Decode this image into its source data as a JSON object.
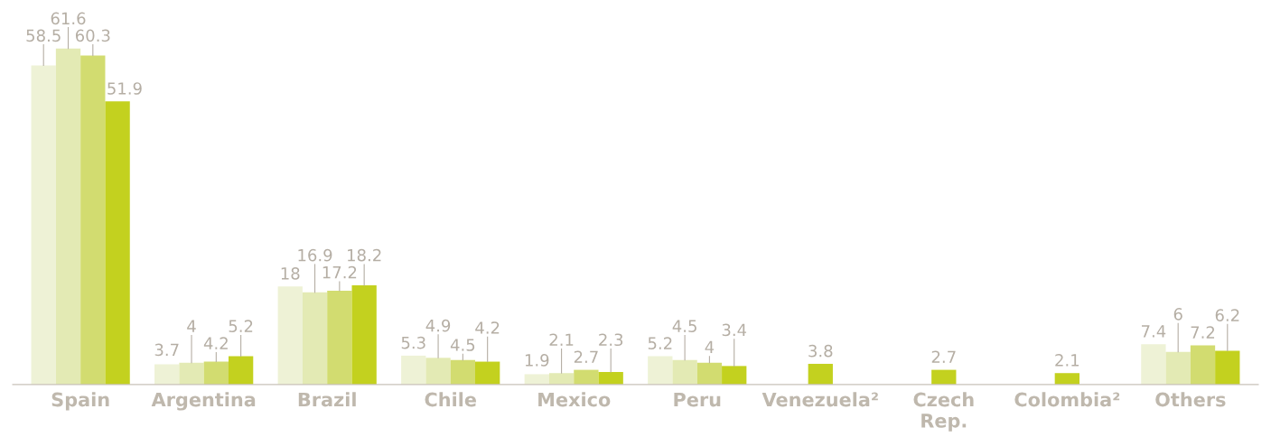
{
  "chart_data": {
    "type": "bar",
    "categories": [
      "Spain",
      "Argentina",
      "Brazil",
      "Chile",
      "Mexico",
      "Peru",
      "Venezuela²",
      "Czech Rep.",
      "Colombia²",
      "Others"
    ],
    "series": [
      {
        "color": "#eef2d6",
        "values": [
          58.5,
          3.7,
          18,
          5.3,
          1.9,
          5.2,
          null,
          null,
          null,
          7.4
        ]
      },
      {
        "color": "#e3eab4",
        "values": [
          61.6,
          4,
          16.9,
          4.9,
          2.1,
          4.5,
          null,
          null,
          null,
          6
        ]
      },
      {
        "color": "#d2dc70",
        "values": [
          60.3,
          4.2,
          17.2,
          4.5,
          2.7,
          4,
          null,
          null,
          null,
          7.2
        ]
      },
      {
        "color": "#c3d11f",
        "values": [
          51.9,
          5.2,
          18.2,
          4.2,
          2.3,
          3.4,
          3.8,
          2.7,
          2.1,
          6.2
        ]
      }
    ],
    "data_labels": true,
    "grid": false,
    "legend": false
  }
}
